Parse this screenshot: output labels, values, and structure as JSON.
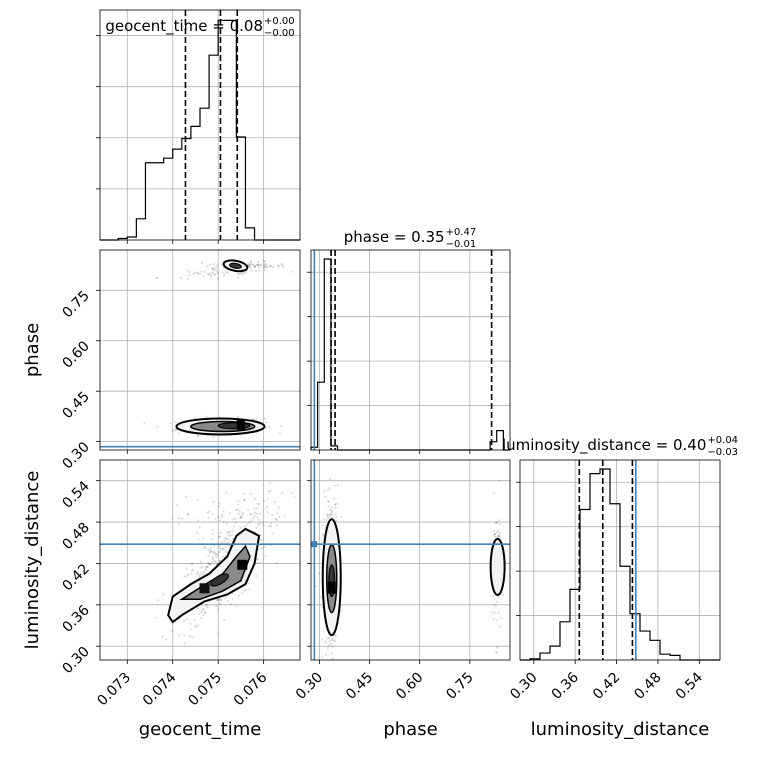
{
  "chart_data": {
    "type": "corner",
    "parameters": [
      "geocent_time",
      "phase",
      "luminosity_distance"
    ],
    "truths": {
      "geocent_time": null,
      "phase": 0.285,
      "luminosity_distance": 0.448
    },
    "titles": [
      {
        "name": "geocent_time",
        "median": "0.08",
        "plus": "+0.00",
        "minus": "−0.00"
      },
      {
        "name": "phase",
        "median": "0.35",
        "plus": "+0.47",
        "minus": "−0.01"
      },
      {
        "name": "luminosity_distance",
        "median": "0.40",
        "plus": "+0.04",
        "minus": "−0.03"
      }
    ],
    "axis_labels": {
      "geocent_time": "geocent_time",
      "phase": "phase",
      "luminosity_distance": "luminosity_distance"
    },
    "ranges": {
      "geocent_time": [
        0.0724,
        0.0768
      ],
      "phase": [
        0.275,
        0.87
      ],
      "luminosity_distance": [
        0.28,
        0.57
      ]
    },
    "ticks": {
      "geocent_time": [
        0.073,
        0.074,
        0.075,
        0.076
      ],
      "phase": [
        0.3,
        0.45,
        0.6,
        0.75
      ],
      "luminosity_distance": [
        0.3,
        0.36,
        0.42,
        0.48,
        0.54
      ]
    },
    "tick_labels": {
      "geocent_time": [
        "0.073",
        "0.074",
        "0.075",
        "0.076"
      ],
      "phase": [
        "0.30",
        "0.45",
        "0.60",
        "0.75"
      ],
      "luminosity_distance": [
        "0.30",
        "0.36",
        "0.42",
        "0.48",
        "0.54"
      ]
    },
    "histograms": {
      "geocent_time": {
        "edges": [
          0.0724,
          0.0726,
          0.0728,
          0.073,
          0.0732,
          0.0734,
          0.0736,
          0.0738,
          0.074,
          0.0742,
          0.0744,
          0.0746,
          0.0748,
          0.075,
          0.0752,
          0.0754,
          0.0756,
          0.0758,
          0.076,
          0.0762,
          0.0764,
          0.0766,
          0.0768
        ],
        "counts": [
          0,
          0,
          1,
          2,
          14,
          51,
          51,
          54,
          60,
          67,
          75,
          87,
          122,
          145,
          145,
          68,
          8,
          0,
          0,
          0,
          0,
          0
        ],
        "quantiles": [
          0.07428,
          0.07505,
          0.07542
        ]
      },
      "phase": {
        "edges": [
          0.275,
          0.2948,
          0.3147,
          0.3345,
          0.3543,
          0.3742,
          0.394,
          0.4138,
          0.4337,
          0.4535,
          0.4733,
          0.4932,
          0.513,
          0.5328,
          0.5527,
          0.5725,
          0.5923,
          0.6122,
          0.632,
          0.6518,
          0.6717,
          0.6915,
          0.7113,
          0.7312,
          0.751,
          0.7708,
          0.7907,
          0.8105,
          0.8303,
          0.8502,
          0.87
        ],
        "counts": [
          2,
          49,
          138,
          3,
          0,
          0,
          0,
          0,
          0,
          0,
          0,
          0,
          0,
          0,
          0,
          0,
          0,
          0,
          0,
          0,
          0,
          0,
          0,
          0,
          0,
          0,
          0,
          6,
          14,
          0
        ],
        "quantiles": [
          0.335,
          0.347,
          0.815
        ]
      },
      "luminosity_distance": {
        "edges": [
          0.28,
          0.2945,
          0.309,
          0.3235,
          0.338,
          0.3525,
          0.367,
          0.3815,
          0.396,
          0.4105,
          0.425,
          0.4395,
          0.454,
          0.4685,
          0.483,
          0.4975,
          0.512,
          0.5265,
          0.541,
          0.5555,
          0.57
        ],
        "counts": [
          0,
          1,
          6,
          12,
          33,
          61,
          130,
          161,
          165,
          135,
          81,
          40,
          25,
          17,
          5,
          4,
          0,
          0,
          0,
          0
        ],
        "quantiles": [
          0.366,
          0.4,
          0.443
        ]
      }
    },
    "contour_levels": [
      "outer",
      "middle",
      "inner"
    ]
  }
}
